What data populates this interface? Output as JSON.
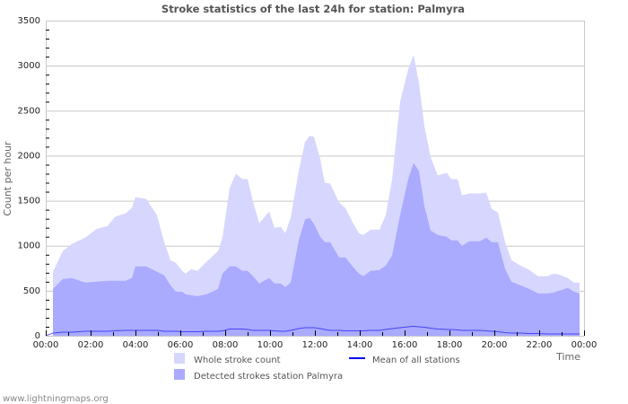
{
  "chart_data": {
    "type": "area",
    "title": "Stroke statistics of the last 24h for station: Palmyra",
    "xlabel": "Time",
    "ylabel": "Count per hour",
    "ylim": [
      0,
      3500
    ],
    "xlim_hours": [
      0,
      24
    ],
    "yticks": [
      0,
      500,
      1000,
      1500,
      2000,
      2500,
      3000,
      3500
    ],
    "xticks": [
      "00:00",
      "02:00",
      "04:00",
      "06:00",
      "08:00",
      "10:00",
      "12:00",
      "14:00",
      "16:00",
      "18:00",
      "20:00",
      "22:00",
      "00:00"
    ],
    "grid": true,
    "legend_position": "bottom",
    "x_hours": [
      0.32,
      0.76,
      1.16,
      1.76,
      2.28,
      2.76,
      3.08,
      3.56,
      3.84,
      4.0,
      4.48,
      4.96,
      5.28,
      5.56,
      5.8,
      6.08,
      6.24,
      6.48,
      6.76,
      7.16,
      7.68,
      7.88,
      8.2,
      8.48,
      8.76,
      9.0,
      9.24,
      9.52,
      9.96,
      10.2,
      10.48,
      10.68,
      10.92,
      11.28,
      11.56,
      11.76,
      11.96,
      12.24,
      12.44,
      12.68,
      13.08,
      13.36,
      13.68,
      13.96,
      14.16,
      14.48,
      14.88,
      15.16,
      15.44,
      15.8,
      16.16,
      16.4,
      16.64,
      16.88,
      17.16,
      17.48,
      17.88,
      18.08,
      18.36,
      18.56,
      18.88,
      19.36,
      19.64,
      19.88,
      20.16,
      20.48,
      20.76,
      21.16,
      21.56,
      21.96,
      22.36,
      22.64,
      22.88,
      23.28,
      23.56,
      23.8
    ],
    "series": [
      {
        "name": "Whole stroke count",
        "color": "#d6d6fe",
        "values": [
          710,
          940,
          1020,
          1090,
          1190,
          1220,
          1320,
          1360,
          1420,
          1540,
          1520,
          1340,
          1040,
          840,
          810,
          720,
          690,
          740,
          720,
          820,
          940,
          1090,
          1640,
          1800,
          1740,
          1740,
          1490,
          1250,
          1380,
          1200,
          1210,
          1140,
          1310,
          1830,
          2150,
          2220,
          2210,
          1960,
          1700,
          1690,
          1480,
          1420,
          1260,
          1140,
          1120,
          1180,
          1180,
          1340,
          1730,
          2600,
          2960,
          3120,
          2810,
          2330,
          1980,
          1780,
          1810,
          1740,
          1740,
          1560,
          1580,
          1580,
          1590,
          1410,
          1370,
          1040,
          840,
          780,
          730,
          660,
          660,
          690,
          680,
          640,
          590,
          590
        ]
      },
      {
        "name": "Detected strokes station Palmyra",
        "color": "#aaaaff",
        "values": [
          520,
          630,
          640,
          590,
          600,
          610,
          610,
          610,
          640,
          770,
          770,
          710,
          670,
          560,
          490,
          490,
          460,
          450,
          440,
          460,
          520,
          690,
          770,
          770,
          720,
          720,
          660,
          580,
          640,
          580,
          580,
          540,
          590,
          1060,
          1290,
          1310,
          1240,
          1100,
          1040,
          1040,
          870,
          870,
          770,
          690,
          660,
          720,
          730,
          780,
          890,
          1340,
          1740,
          1920,
          1830,
          1440,
          1170,
          1120,
          1100,
          1060,
          1060,
          1000,
          1050,
          1050,
          1090,
          1040,
          1040,
          740,
          600,
          560,
          520,
          470,
          470,
          480,
          500,
          530,
          490,
          470
        ]
      },
      {
        "name": "Mean of all stations",
        "color": "#0000ee",
        "style": "line",
        "values": [
          30,
          40,
          40,
          50,
          50,
          50,
          55,
          60,
          60,
          60,
          60,
          60,
          50,
          50,
          50,
          45,
          45,
          45,
          45,
          50,
          50,
          55,
          75,
          75,
          75,
          70,
          60,
          60,
          60,
          55,
          50,
          50,
          60,
          80,
          90,
          90,
          90,
          80,
          70,
          60,
          60,
          55,
          55,
          55,
          55,
          60,
          60,
          70,
          80,
          90,
          100,
          105,
          100,
          95,
          85,
          75,
          70,
          70,
          65,
          60,
          60,
          60,
          55,
          50,
          45,
          35,
          30,
          30,
          25,
          25,
          20,
          20,
          20,
          20,
          20,
          20
        ]
      }
    ]
  },
  "legend": {
    "whole_label": "Whole stroke count",
    "detected_label": "Detected strokes station Palmyra",
    "mean_label": "Mean of all stations",
    "whole_color": "#d6d6fe",
    "detected_color": "#aaaaff",
    "mean_color": "#0000ee"
  },
  "footer": {
    "source": "www.lightningmaps.org"
  }
}
